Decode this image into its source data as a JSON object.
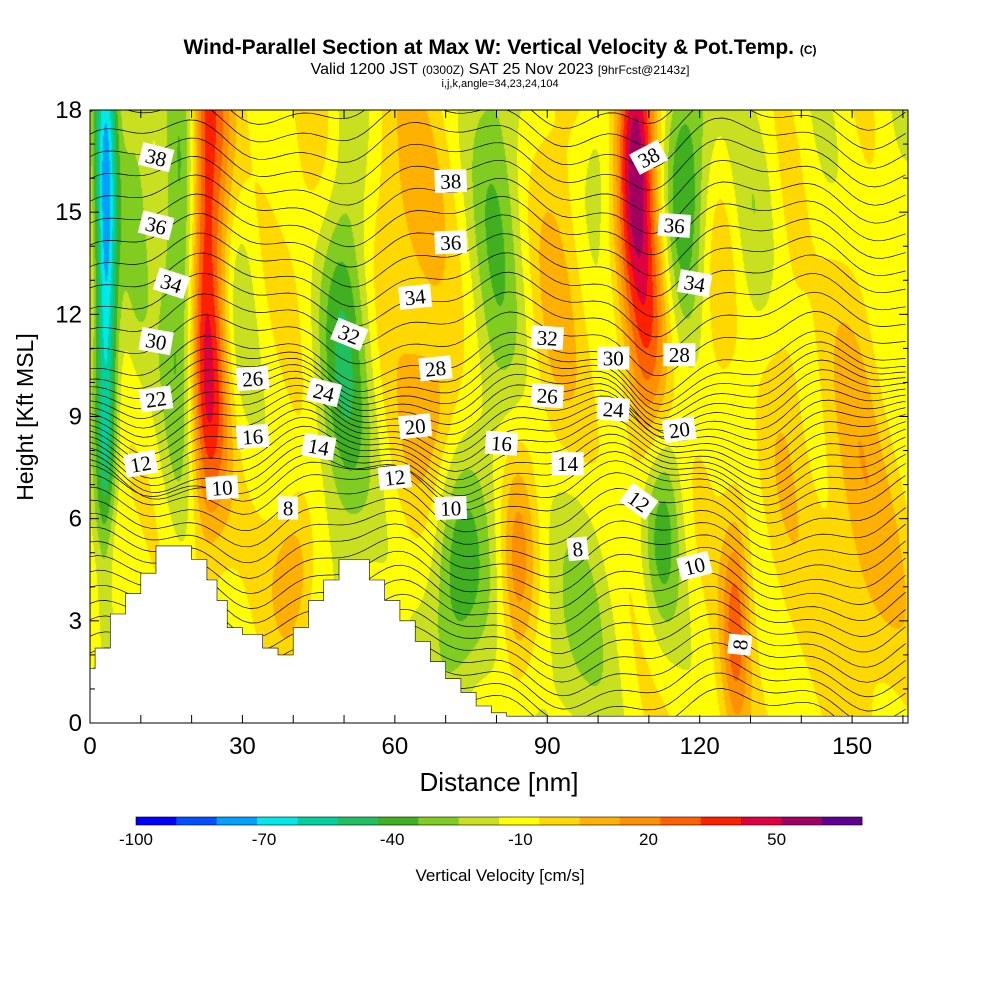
{
  "header": {
    "title": "Wind-Parallel Section at Max W: Vertical Velocity & Pot.Temp.",
    "copyright": "(C)",
    "valid_prefix": "Valid 1200 JST",
    "valid_utc": "(0300Z)",
    "valid_date": "SAT 25 Nov 2023",
    "forecast": "[9hrFcst@2143z]",
    "indices": "i,j,k,angle=34,23,24,104"
  },
  "chart_data": {
    "type": "heatmap",
    "xlabel": "Distance [nm]",
    "ylabel": "Height [Kft MSL]",
    "xlim": [
      0,
      161
    ],
    "ylim": [
      0,
      18
    ],
    "x_ticks": [
      0,
      30,
      60,
      90,
      120,
      150
    ],
    "y_ticks": [
      0,
      3,
      6,
      9,
      12,
      15,
      18
    ],
    "colorbar": {
      "label": "Vertical Velocity [cm/s]",
      "tick_labels": [
        "-100",
        "-70",
        "-40",
        "-10",
        "20",
        "50"
      ],
      "tick_values": [
        -100,
        -70,
        -40,
        -10,
        20,
        50
      ],
      "min": -100,
      "max": 70,
      "step": 10,
      "colors": [
        "#0000ff",
        "#0050ff",
        "#00a0ff",
        "#00e8e8",
        "#00d0a0",
        "#20c060",
        "#40b020",
        "#80cc20",
        "#c8e020",
        "#ffff00",
        "#ffd800",
        "#ffb000",
        "#ff9000",
        "#ff6000",
        "#ff2000",
        "#e00040",
        "#a00060",
        "#600090"
      ]
    },
    "terrain_kft": [
      [
        0,
        1.6
      ],
      [
        1,
        1.6
      ],
      [
        1,
        2.2
      ],
      [
        4,
        2.2
      ],
      [
        4,
        3.2
      ],
      [
        7,
        3.2
      ],
      [
        7,
        3.8
      ],
      [
        10,
        3.8
      ],
      [
        10,
        4.4
      ],
      [
        13,
        4.4
      ],
      [
        13,
        5.2
      ],
      [
        20,
        5.2
      ],
      [
        20,
        4.8
      ],
      [
        23,
        4.8
      ],
      [
        23,
        4.2
      ],
      [
        25,
        4.2
      ],
      [
        25,
        3.6
      ],
      [
        27,
        3.6
      ],
      [
        27,
        2.8
      ],
      [
        30,
        2.8
      ],
      [
        30,
        2.6
      ],
      [
        34,
        2.6
      ],
      [
        34,
        2.2
      ],
      [
        37,
        2.2
      ],
      [
        37,
        2.0
      ],
      [
        40,
        2.0
      ],
      [
        40,
        2.8
      ],
      [
        43,
        2.8
      ],
      [
        43,
        3.6
      ],
      [
        46,
        3.6
      ],
      [
        46,
        4.2
      ],
      [
        49,
        4.2
      ],
      [
        49,
        4.8
      ],
      [
        55,
        4.8
      ],
      [
        55,
        4.2
      ],
      [
        58,
        4.2
      ],
      [
        58,
        3.6
      ],
      [
        61,
        3.6
      ],
      [
        61,
        3.0
      ],
      [
        64,
        3.0
      ],
      [
        64,
        2.4
      ],
      [
        67,
        2.4
      ],
      [
        67,
        1.8
      ],
      [
        70,
        1.8
      ],
      [
        70,
        1.3
      ],
      [
        73,
        1.3
      ],
      [
        73,
        0.9
      ],
      [
        76,
        0.9
      ],
      [
        76,
        0.5
      ],
      [
        79,
        0.5
      ],
      [
        79,
        0.3
      ],
      [
        82,
        0.3
      ],
      [
        82,
        0.2
      ],
      [
        161,
        0.2
      ]
    ],
    "w_field": [
      {
        "x": 3,
        "y": 14,
        "sx": 1.6,
        "sy": 7,
        "w": -70
      },
      {
        "x": 4,
        "y": 5,
        "sx": 2,
        "sy": 1.5,
        "w": 20
      },
      {
        "x": 9,
        "y": 16,
        "sx": 2.5,
        "sy": 4,
        "w": -20
      },
      {
        "x": 18,
        "y": 13.5,
        "sx": 3,
        "sy": 5,
        "w": -35
      },
      {
        "x": 22,
        "y": 15,
        "sx": 2,
        "sy": 6,
        "w": 40
      },
      {
        "x": 25,
        "y": 15,
        "sx": 2.5,
        "sy": 5,
        "w": 35
      },
      {
        "x": 24,
        "y": 9,
        "sx": 3,
        "sy": 2.5,
        "w": 25
      },
      {
        "x": 28,
        "y": 12,
        "sx": 3,
        "sy": 3,
        "w": -20
      },
      {
        "x": 40,
        "y": 4.5,
        "sx": 3,
        "sy": 1.5,
        "w": 25
      },
      {
        "x": 45,
        "y": 16,
        "sx": 4,
        "sy": 3,
        "w": 15
      },
      {
        "x": 50,
        "y": 12,
        "sx": 4,
        "sy": 5,
        "w": -40
      },
      {
        "x": 58,
        "y": 15,
        "sx": 5,
        "sy": 3,
        "w": 15
      },
      {
        "x": 66,
        "y": 13,
        "sx": 4,
        "sy": 5,
        "w": 12
      },
      {
        "x": 68,
        "y": 9,
        "sx": 4,
        "sy": 1.5,
        "w": 15
      },
      {
        "x": 72,
        "y": 4,
        "sx": 4,
        "sy": 2.5,
        "w": -35
      },
      {
        "x": 80,
        "y": 15,
        "sx": 4,
        "sy": 6,
        "w": -25
      },
      {
        "x": 84,
        "y": 4.5,
        "sx": 2.5,
        "sy": 2.5,
        "w": 30
      },
      {
        "x": 92,
        "y": 13,
        "sx": 4,
        "sy": 5,
        "w": 15
      },
      {
        "x": 95,
        "y": 3,
        "sx": 6,
        "sy": 3,
        "w": -20
      },
      {
        "x": 100,
        "y": 16.5,
        "sx": 3,
        "sy": 2,
        "w": -15
      },
      {
        "x": 107,
        "y": 17,
        "sx": 2.5,
        "sy": 3,
        "w": 60
      },
      {
        "x": 110,
        "y": 12,
        "sx": 3,
        "sy": 5,
        "w": 40
      },
      {
        "x": 112,
        "y": 6,
        "sx": 3,
        "sy": 2.5,
        "w": -40
      },
      {
        "x": 117,
        "y": 16,
        "sx": 4,
        "sy": 3,
        "w": -40
      },
      {
        "x": 123,
        "y": 13,
        "sx": 3,
        "sy": 3,
        "w": 15
      },
      {
        "x": 127,
        "y": 3,
        "sx": 2,
        "sy": 2.5,
        "w": 35
      },
      {
        "x": 131,
        "y": 14,
        "sx": 4,
        "sy": 4,
        "w": -15
      },
      {
        "x": 137,
        "y": 11,
        "sx": 4,
        "sy": 5,
        "w": 15
      },
      {
        "x": 142,
        "y": 14,
        "sx": 4,
        "sy": 4,
        "w": -10
      },
      {
        "x": 150,
        "y": 9,
        "sx": 5,
        "sy": 4,
        "w": 15
      },
      {
        "x": 155,
        "y": 4,
        "sx": 5,
        "sy": 3,
        "w": 12
      },
      {
        "x": 158,
        "y": 15,
        "sx": 3,
        "sy": 4,
        "w": -10
      }
    ],
    "theta_labels": [
      {
        "text": "38",
        "x": 13,
        "y": 16.6,
        "angle": 14
      },
      {
        "text": "36",
        "x": 13,
        "y": 14.6,
        "angle": 14
      },
      {
        "text": "34",
        "x": 16,
        "y": 12.9,
        "angle": 18
      },
      {
        "text": "30",
        "x": 13,
        "y": 11.2,
        "angle": 10
      },
      {
        "text": "22",
        "x": 13,
        "y": 9.5,
        "angle": -8
      },
      {
        "text": "12",
        "x": 10,
        "y": 7.6,
        "angle": -10
      },
      {
        "text": "26",
        "x": 32,
        "y": 10.1,
        "angle": -4
      },
      {
        "text": "16",
        "x": 32,
        "y": 8.4,
        "angle": -4
      },
      {
        "text": "10",
        "x": 26,
        "y": 6.9,
        "angle": -4
      },
      {
        "text": "24",
        "x": 46,
        "y": 9.7,
        "angle": 14
      },
      {
        "text": "14",
        "x": 45,
        "y": 8.1,
        "angle": 10
      },
      {
        "text": "8",
        "x": 39,
        "y": 6.3,
        "angle": 0
      },
      {
        "text": "32",
        "x": 51,
        "y": 11.4,
        "angle": 22
      },
      {
        "text": "38",
        "x": 71,
        "y": 15.9,
        "angle": -2
      },
      {
        "text": "36",
        "x": 71,
        "y": 14.1,
        "angle": -2
      },
      {
        "text": "34",
        "x": 64,
        "y": 12.5,
        "angle": -6
      },
      {
        "text": "28",
        "x": 68,
        "y": 10.4,
        "angle": -6
      },
      {
        "text": "20",
        "x": 64,
        "y": 8.7,
        "angle": -6
      },
      {
        "text": "12",
        "x": 60,
        "y": 7.2,
        "angle": -6
      },
      {
        "text": "10",
        "x": 71,
        "y": 6.3,
        "angle": -2
      },
      {
        "text": "32",
        "x": 90,
        "y": 11.3,
        "angle": 4
      },
      {
        "text": "26",
        "x": 90,
        "y": 9.6,
        "angle": 4
      },
      {
        "text": "16",
        "x": 81,
        "y": 8.2,
        "angle": 4
      },
      {
        "text": "14",
        "x": 94,
        "y": 7.6,
        "angle": 0
      },
      {
        "text": "8",
        "x": 96,
        "y": 5.1,
        "angle": -6
      },
      {
        "text": "30",
        "x": 103,
        "y": 10.7,
        "angle": 0
      },
      {
        "text": "24",
        "x": 103,
        "y": 9.2,
        "angle": 4
      },
      {
        "text": "38",
        "x": 110,
        "y": 16.6,
        "angle": -28
      },
      {
        "text": "36",
        "x": 115,
        "y": 14.6,
        "angle": 4
      },
      {
        "text": "34",
        "x": 119,
        "y": 12.9,
        "angle": 10
      },
      {
        "text": "28",
        "x": 116,
        "y": 10.8,
        "angle": 0
      },
      {
        "text": "20",
        "x": 116,
        "y": 8.6,
        "angle": -8
      },
      {
        "text": "12",
        "x": 108,
        "y": 6.5,
        "angle": 36
      },
      {
        "text": "10",
        "x": 119,
        "y": 4.6,
        "angle": -14
      },
      {
        "text": "8",
        "x": 128,
        "y": 2.3,
        "angle": -84
      }
    ]
  }
}
